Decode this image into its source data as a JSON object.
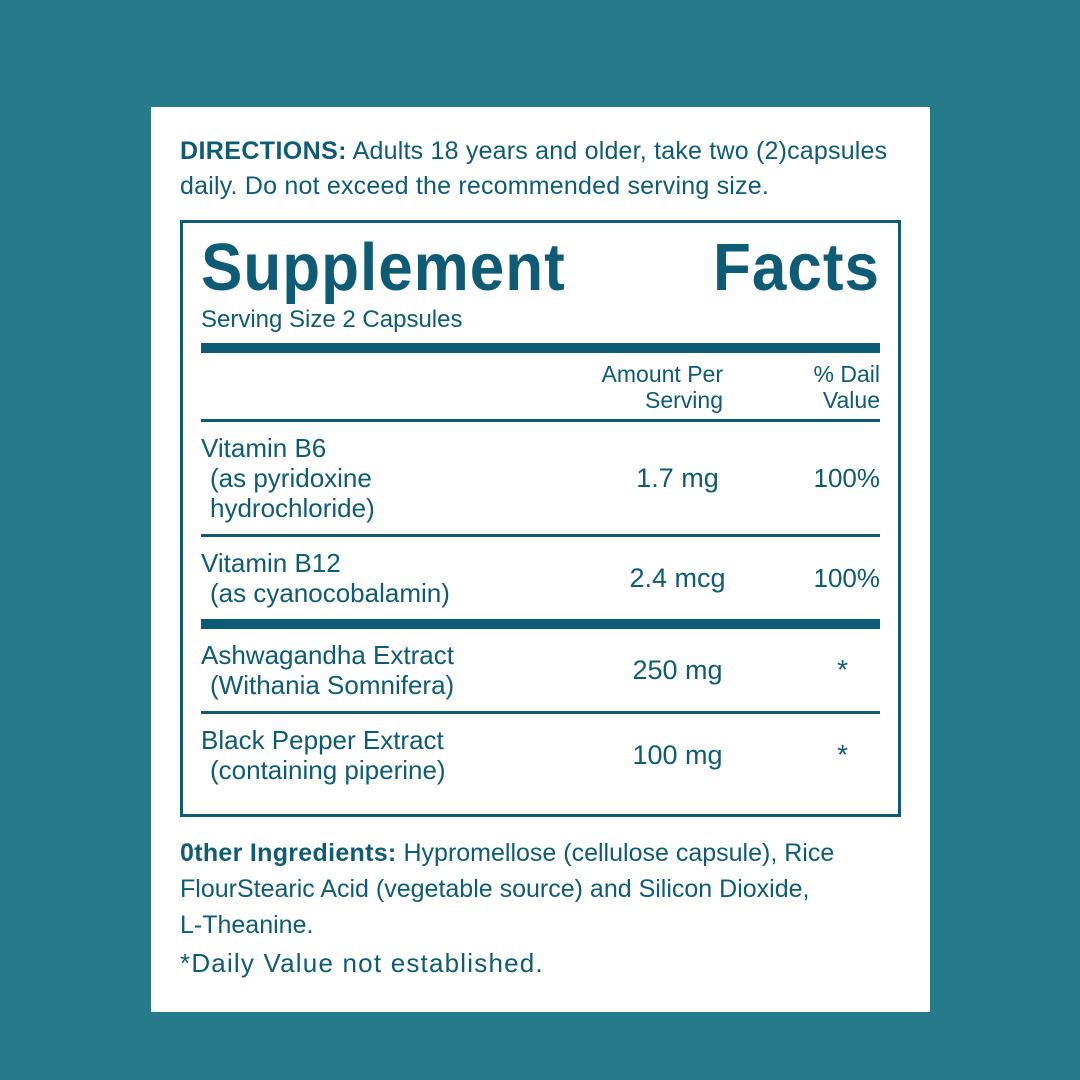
{
  "colors": {
    "background": "#257b8a",
    "card": "#ffffff",
    "ink": "#0e5b76"
  },
  "directions": {
    "label": "DIRECTIONS:",
    "rest_line1": " Adults 18 years and older, take two (2)capsules",
    "line2": "daily. Do not exceed the recommended serving size."
  },
  "panel": {
    "title_word1": "Supplement",
    "title_word2": "Facts",
    "serving_size": "Serving Size 2 Capsules",
    "col_amount_line1": "Amount Per",
    "col_amount_line2": "Serving",
    "col_dv_line1": "% Dail",
    "col_dv_line2": "Value",
    "rows": [
      {
        "name_lines": [
          "Vitamin B6",
          "(as pyridoxine",
          "hydrochloride)"
        ],
        "amount": "1.7 mg",
        "dv": "100%",
        "divider_after": "thin"
      },
      {
        "name_lines": [
          "Vitamin B12",
          "(as cyanocobalamin)"
        ],
        "amount": "2.4 mcg",
        "dv": "100%",
        "divider_after": "thick"
      },
      {
        "name_lines": [
          "Ashwagandha Extract",
          "(Withania Somnifera)"
        ],
        "amount": "250 mg",
        "dv": "*",
        "divider_after": "thin"
      },
      {
        "name_lines": [
          "Black Pepper Extract",
          "(containing piperine)"
        ],
        "amount": "100 mg",
        "dv": "*",
        "divider_after": "none"
      }
    ]
  },
  "other_ingredients": {
    "label": "0ther Ingredients:",
    "rest_line1": " Hypromellose (cellulose capsule), Rice",
    "line2": "FlourStearic Acid (vegetable source) and Silicon Dioxide,",
    "line3": "L-Theanine."
  },
  "footnote": "*Daily Value not established."
}
